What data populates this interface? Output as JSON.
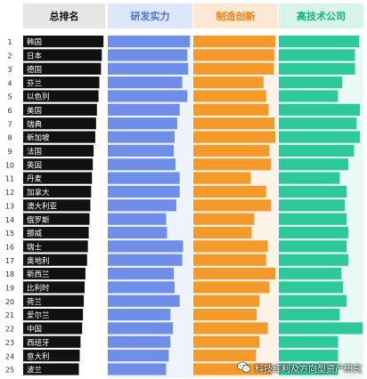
{
  "colors": {
    "rank": "#111111",
    "research": "#6f8ee8",
    "manufacturing": "#f49a2a",
    "hightech": "#2ec99a",
    "header_rank_bg": "#e6e6e6",
    "header_research_bg": "#dde6fb",
    "header_manufacturing_bg": "#fde8d3",
    "header_hightech_bg": "#d6f4ea",
    "header_rank_text": "#111111",
    "header_research_text": "#4a73d4",
    "header_manufacturing_text": "#e9831a",
    "header_hightech_text": "#1cae83",
    "col_bg_research": "#eef3fd",
    "col_bg_manufacturing": "#fdf3e8",
    "col_bg_hightech": "#e9f9f3"
  },
  "watermark": {
    "icon": "wechat-icon",
    "text": "科技红利及方向型资产研究"
  },
  "chart_data": {
    "type": "bar",
    "columns": [
      "总排名",
      "研发实力",
      "制造创新",
      "高技术公司"
    ],
    "ranks": [
      "1",
      "2",
      "3",
      "4",
      "5",
      "6",
      "7",
      "8",
      "9",
      "10",
      "11",
      "12",
      "13",
      "14",
      "15",
      "16",
      "17",
      "18",
      "19",
      "20",
      "21",
      "22",
      "23",
      "24",
      "25"
    ],
    "categories": [
      "韩国",
      "日本",
      "德国",
      "芬兰",
      "以色列",
      "美国",
      "瑞典",
      "新加坡",
      "法国",
      "英国",
      "丹麦",
      "加拿大",
      "澳大利亚",
      "俄罗斯",
      "挪威",
      "瑞士",
      "奥地利",
      "新西兰",
      "比利时",
      "荷兰",
      "爱尔兰",
      "中国",
      "西班牙",
      "意大利",
      "波兰"
    ],
    "series": [
      {
        "name": "总排名",
        "values": [
          98,
          96,
          95,
          93,
          92,
          90,
          89,
          88,
          86,
          85,
          84,
          83,
          82,
          81,
          80,
          79,
          78,
          76,
          75,
          74,
          73,
          72,
          70,
          69,
          68
        ]
      },
      {
        "name": "研发实力",
        "values": [
          97,
          94,
          95,
          88,
          94,
          85,
          82,
          79,
          78,
          80,
          85,
          85,
          81,
          69,
          70,
          89,
          88,
          78,
          79,
          85,
          74,
          77,
          74,
          72,
          69
        ]
      },
      {
        "name": "制造创新",
        "values": [
          97,
          96,
          95,
          83,
          86,
          89,
          96,
          97,
          90,
          92,
          68,
          86,
          92,
          72,
          69,
          88,
          86,
          97,
          90,
          78,
          75,
          88,
          78,
          74,
          93
        ]
      },
      {
        "name": "高技术公司",
        "values": [
          95,
          90,
          90,
          75,
          70,
          96,
          92,
          96,
          89,
          82,
          72,
          80,
          78,
          80,
          82,
          80,
          82,
          74,
          76,
          80,
          72,
          99,
          70,
          70,
          70
        ]
      }
    ]
  }
}
